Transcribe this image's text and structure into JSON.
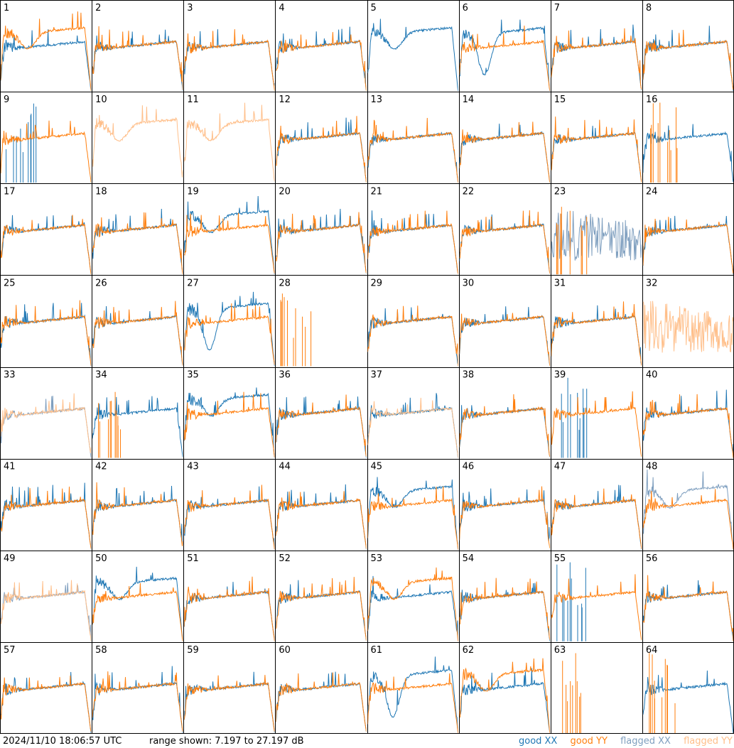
{
  "footer": {
    "timestamp": "2024/11/10 18:06:57 UTC",
    "range_text": "range shown: 7.197 to 27.197 dB"
  },
  "legend": {
    "good_xx": "good XX",
    "good_yy": "good YY",
    "flagged_xx": "flagged XX",
    "flagged_yy": "flagged YY"
  },
  "colors": {
    "good_xx": "#1f77b4",
    "good_yy": "#ff7f0e",
    "flagged_xx": "#7f9fbf",
    "flagged_yy": "#ffbf8a"
  },
  "chart_data": {
    "type": "line",
    "grid": "8x8 small multiples",
    "y_range_db": [
      7.197,
      27.197
    ],
    "series_kinds": [
      "good XX",
      "good YY",
      "flagged XX",
      "flagged YY"
    ],
    "panels": [
      {
        "label": "1",
        "xx": "good",
        "yy": "good",
        "xx_profile": "flat",
        "yy_profile": "dip"
      },
      {
        "label": "2",
        "xx": "good",
        "yy": "good",
        "xx_profile": "flat",
        "yy_profile": "flat"
      },
      {
        "label": "3",
        "xx": "good",
        "yy": "good",
        "xx_profile": "flat",
        "yy_profile": "flat"
      },
      {
        "label": "4",
        "xx": "good",
        "yy": "good",
        "xx_profile": "flat",
        "yy_profile": "flat"
      },
      {
        "label": "5",
        "xx": "good",
        "yy": "none",
        "xx_profile": "dip",
        "yy_profile": "none"
      },
      {
        "label": "6",
        "xx": "good",
        "yy": "good",
        "xx_profile": "deepdip",
        "yy_profile": "flat"
      },
      {
        "label": "7",
        "xx": "good",
        "yy": "good",
        "xx_profile": "flat",
        "yy_profile": "flat"
      },
      {
        "label": "8",
        "xx": "good",
        "yy": "good",
        "xx_profile": "flat",
        "yy_profile": "flat"
      },
      {
        "label": "9",
        "xx": "good",
        "yy": "good",
        "xx_profile": "spikes",
        "yy_profile": "flat"
      },
      {
        "label": "10",
        "xx": "none",
        "yy": "flagged",
        "xx_profile": "none",
        "yy_profile": "dip"
      },
      {
        "label": "11",
        "xx": "none",
        "yy": "flagged",
        "xx_profile": "none",
        "yy_profile": "dip"
      },
      {
        "label": "12",
        "xx": "good",
        "yy": "good",
        "xx_profile": "flat",
        "yy_profile": "flat"
      },
      {
        "label": "13",
        "xx": "good",
        "yy": "good",
        "xx_profile": "flat",
        "yy_profile": "flat"
      },
      {
        "label": "14",
        "xx": "good",
        "yy": "good",
        "xx_profile": "flat",
        "yy_profile": "flat"
      },
      {
        "label": "15",
        "xx": "good",
        "yy": "good",
        "xx_profile": "flat",
        "yy_profile": "flat"
      },
      {
        "label": "16",
        "xx": "good",
        "yy": "good",
        "xx_profile": "flat",
        "yy_profile": "spikes"
      },
      {
        "label": "17",
        "xx": "good",
        "yy": "good",
        "xx_profile": "flat",
        "yy_profile": "flat"
      },
      {
        "label": "18",
        "xx": "good",
        "yy": "good",
        "xx_profile": "flat",
        "yy_profile": "flat"
      },
      {
        "label": "19",
        "xx": "good",
        "yy": "good",
        "xx_profile": "dip",
        "yy_profile": "flat"
      },
      {
        "label": "20",
        "xx": "good",
        "yy": "good",
        "xx_profile": "flat",
        "yy_profile": "flat"
      },
      {
        "label": "21",
        "xx": "good",
        "yy": "good",
        "xx_profile": "flat",
        "yy_profile": "flat"
      },
      {
        "label": "22",
        "xx": "good",
        "yy": "good",
        "xx_profile": "flat",
        "yy_profile": "flat"
      },
      {
        "label": "23",
        "xx": "flagged",
        "yy": "good",
        "xx_profile": "noise",
        "yy_profile": "spikes"
      },
      {
        "label": "24",
        "xx": "good",
        "yy": "good",
        "xx_profile": "flat",
        "yy_profile": "flat"
      },
      {
        "label": "25",
        "xx": "good",
        "yy": "good",
        "xx_profile": "flat",
        "yy_profile": "flat"
      },
      {
        "label": "26",
        "xx": "good",
        "yy": "good",
        "xx_profile": "flat",
        "yy_profile": "flat"
      },
      {
        "label": "27",
        "xx": "good",
        "yy": "good",
        "xx_profile": "deepdip",
        "yy_profile": "flat"
      },
      {
        "label": "28",
        "xx": "none",
        "yy": "good",
        "xx_profile": "none",
        "yy_profile": "spikes"
      },
      {
        "label": "29",
        "xx": "good",
        "yy": "good",
        "xx_profile": "flat",
        "yy_profile": "flat"
      },
      {
        "label": "30",
        "xx": "good",
        "yy": "good",
        "xx_profile": "flat",
        "yy_profile": "flat"
      },
      {
        "label": "31",
        "xx": "good",
        "yy": "good",
        "xx_profile": "flat",
        "yy_profile": "flat"
      },
      {
        "label": "32",
        "xx": "none",
        "yy": "flagged",
        "xx_profile": "none",
        "yy_profile": "noise"
      },
      {
        "label": "33",
        "xx": "flagged",
        "yy": "flagged",
        "xx_profile": "flat",
        "yy_profile": "flat"
      },
      {
        "label": "34",
        "xx": "good",
        "yy": "good",
        "xx_profile": "flat",
        "yy_profile": "spikes"
      },
      {
        "label": "35",
        "xx": "good",
        "yy": "good",
        "xx_profile": "dip",
        "yy_profile": "flat"
      },
      {
        "label": "36",
        "xx": "good",
        "yy": "good",
        "xx_profile": "flat",
        "yy_profile": "flat"
      },
      {
        "label": "37",
        "xx": "good",
        "yy": "flagged",
        "xx_profile": "flat",
        "yy_profile": "flat"
      },
      {
        "label": "38",
        "xx": "good",
        "yy": "good",
        "xx_profile": "flat",
        "yy_profile": "flat"
      },
      {
        "label": "39",
        "xx": "good",
        "yy": "good",
        "xx_profile": "spikes",
        "yy_profile": "flat"
      },
      {
        "label": "40",
        "xx": "good",
        "yy": "good",
        "xx_profile": "flat",
        "yy_profile": "flat"
      },
      {
        "label": "41",
        "xx": "good",
        "yy": "good",
        "xx_profile": "flat",
        "yy_profile": "flat"
      },
      {
        "label": "42",
        "xx": "good",
        "yy": "good",
        "xx_profile": "flat",
        "yy_profile": "flat"
      },
      {
        "label": "43",
        "xx": "good",
        "yy": "good",
        "xx_profile": "flat",
        "yy_profile": "flat"
      },
      {
        "label": "44",
        "xx": "good",
        "yy": "good",
        "xx_profile": "flat",
        "yy_profile": "flat"
      },
      {
        "label": "45",
        "xx": "good",
        "yy": "good",
        "xx_profile": "dip",
        "yy_profile": "flat"
      },
      {
        "label": "46",
        "xx": "good",
        "yy": "good",
        "xx_profile": "flat",
        "yy_profile": "flat"
      },
      {
        "label": "47",
        "xx": "good",
        "yy": "good",
        "xx_profile": "flat",
        "yy_profile": "flat"
      },
      {
        "label": "48",
        "xx": "flagged",
        "yy": "good",
        "xx_profile": "dip",
        "yy_profile": "flat"
      },
      {
        "label": "49",
        "xx": "flagged",
        "yy": "flagged",
        "xx_profile": "flat",
        "yy_profile": "flat"
      },
      {
        "label": "50",
        "xx": "good",
        "yy": "good",
        "xx_profile": "dip",
        "yy_profile": "flat"
      },
      {
        "label": "51",
        "xx": "good",
        "yy": "good",
        "xx_profile": "flat",
        "yy_profile": "flat"
      },
      {
        "label": "52",
        "xx": "good",
        "yy": "good",
        "xx_profile": "flat",
        "yy_profile": "flat"
      },
      {
        "label": "53",
        "xx": "good",
        "yy": "good",
        "xx_profile": "flat",
        "yy_profile": "dip"
      },
      {
        "label": "54",
        "xx": "good",
        "yy": "good",
        "xx_profile": "flat",
        "yy_profile": "flat"
      },
      {
        "label": "55",
        "xx": "good",
        "yy": "good",
        "xx_profile": "spikes",
        "yy_profile": "flat"
      },
      {
        "label": "56",
        "xx": "good",
        "yy": "good",
        "xx_profile": "flat",
        "yy_profile": "flat"
      },
      {
        "label": "57",
        "xx": "good",
        "yy": "good",
        "xx_profile": "flat",
        "yy_profile": "flat"
      },
      {
        "label": "58",
        "xx": "good",
        "yy": "good",
        "xx_profile": "flat",
        "yy_profile": "flat"
      },
      {
        "label": "59",
        "xx": "good",
        "yy": "good",
        "xx_profile": "flat",
        "yy_profile": "flat"
      },
      {
        "label": "60",
        "xx": "good",
        "yy": "good",
        "xx_profile": "flat",
        "yy_profile": "flat"
      },
      {
        "label": "61",
        "xx": "good",
        "yy": "good",
        "xx_profile": "deepdip",
        "yy_profile": "flat"
      },
      {
        "label": "62",
        "xx": "good",
        "yy": "good",
        "xx_profile": "flat",
        "yy_profile": "dip"
      },
      {
        "label": "63",
        "xx": "none",
        "yy": "good",
        "xx_profile": "none",
        "yy_profile": "spikes"
      },
      {
        "label": "64",
        "xx": "good",
        "yy": "good",
        "xx_profile": "flat",
        "yy_profile": "spikes"
      }
    ]
  }
}
